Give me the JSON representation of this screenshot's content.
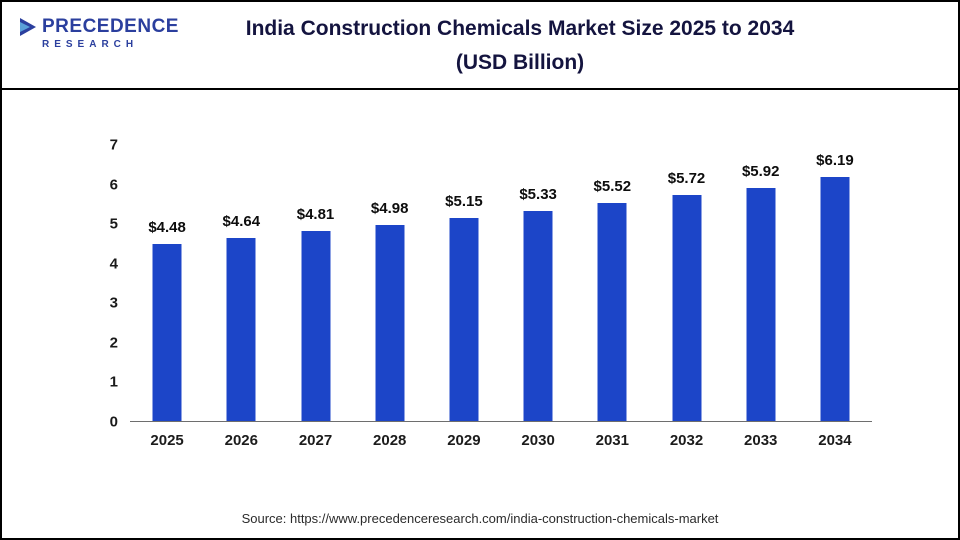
{
  "logo": {
    "name": "PRECEDENCE",
    "subname": "RESEARCH"
  },
  "header": {
    "title_line1": "India Construction Chemicals Market Size 2025 to 2034",
    "title_line2": "(USD Billion)"
  },
  "footer": {
    "source": "Source: https://www.precedenceresearch.com/india-construction-chemicals-market"
  },
  "chart_data": {
    "type": "bar",
    "title": "India Construction Chemicals Market Size 2025 to 2034 (USD Billion)",
    "categories": [
      "2025",
      "2026",
      "2027",
      "2028",
      "2029",
      "2030",
      "2031",
      "2032",
      "2033",
      "2034"
    ],
    "values": [
      4.48,
      4.64,
      4.81,
      4.98,
      5.15,
      5.33,
      5.52,
      5.72,
      5.92,
      6.19
    ],
    "value_labels": [
      "$4.48",
      "$4.64",
      "$4.81",
      "$4.98",
      "$5.15",
      "$5.33",
      "$5.52",
      "$5.72",
      "$5.92",
      "$6.19"
    ],
    "xlabel": "",
    "ylabel": "",
    "ylim": [
      0,
      7
    ],
    "ytick_step": 1,
    "grid": false,
    "legend": false,
    "bar_color": "#1c45c8"
  }
}
